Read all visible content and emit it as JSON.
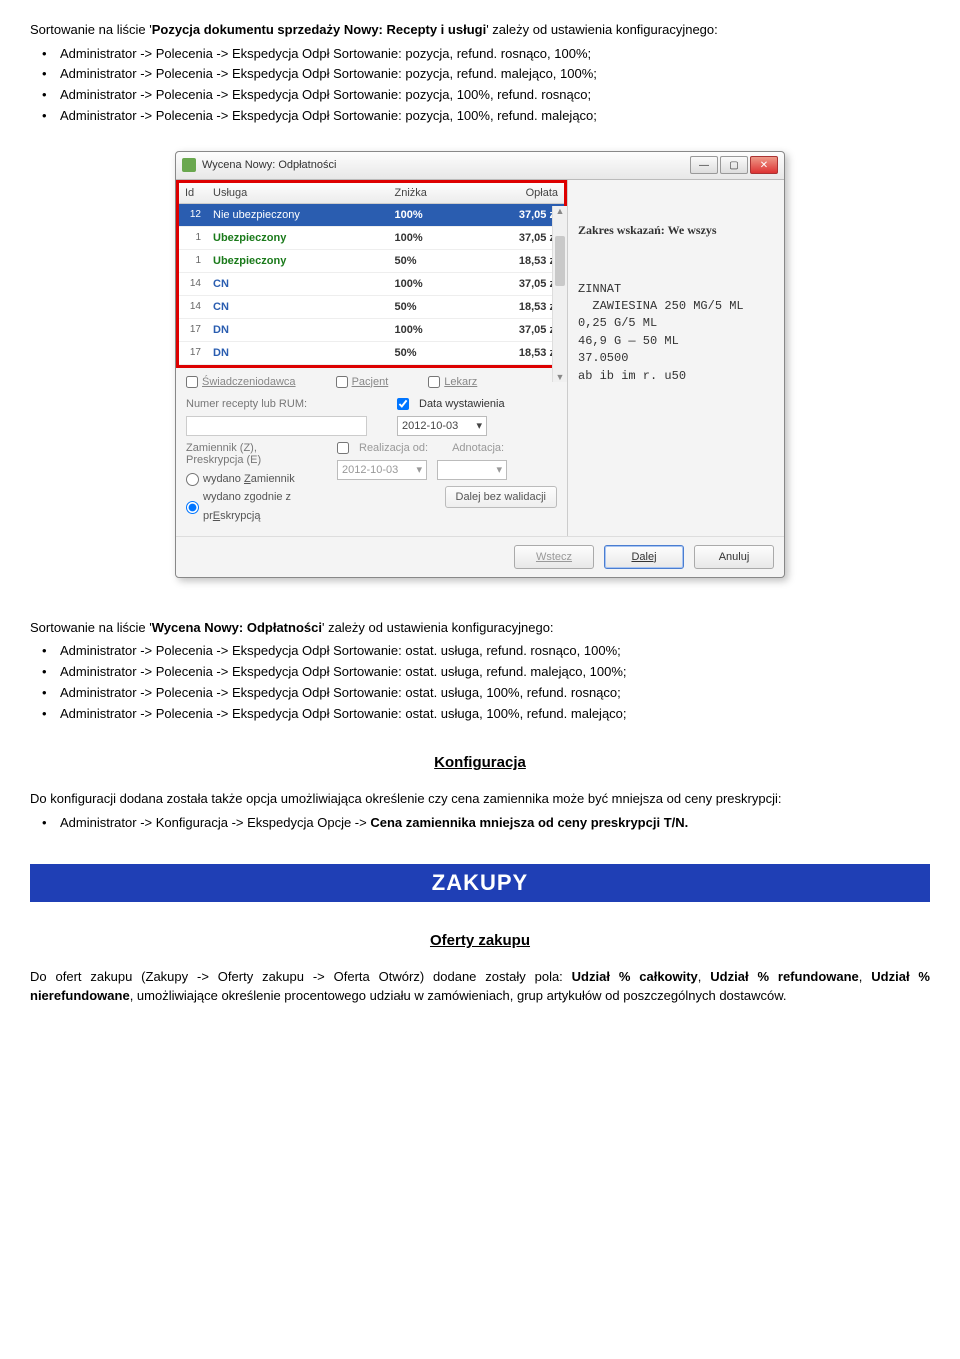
{
  "intro1": {
    "lead": "Sortowanie na liście '",
    "bold": "Pozycja dokumentu sprzedaży Nowy: Recepty i usługi",
    "tail": "' zależy od ustawienia konfiguracyjnego:",
    "items": [
      "Administrator -> Polecenia -> Ekspedycja Odpł Sortowanie: pozycja, refund. rosnąco, 100%;",
      "Administrator -> Polecenia -> Ekspedycja Odpł Sortowanie: pozycja, refund. malejąco, 100%;",
      "Administrator -> Polecenia -> Ekspedycja Odpł Sortowanie: pozycja, 100%, refund. rosnąco;",
      "Administrator -> Polecenia -> Ekspedycja Odpł Sortowanie: pozycja, 100%, refund. malejąco;"
    ]
  },
  "window": {
    "title": "Wycena Nowy: Odpłatności",
    "headers": {
      "id": "Id",
      "usluga": "Usługa",
      "znizka": "Zniżka",
      "oplata": "Opłata"
    },
    "rows": [
      {
        "id": "12",
        "usluga": "Nie ubezpieczony",
        "znizka": "100%",
        "oplata": "37,05 zł",
        "selected": true
      },
      {
        "id": "1",
        "usluga": "Ubezpieczony",
        "znizka": "100%",
        "oplata": "37,05 zł",
        "green": true
      },
      {
        "id": "1",
        "usluga": "Ubezpieczony",
        "znizka": "50%",
        "oplata": "18,53 zł",
        "green": true
      },
      {
        "id": "14",
        "usluga": "CN",
        "znizka": "100%",
        "oplata": "37,05 zł",
        "blue": true
      },
      {
        "id": "14",
        "usluga": "CN",
        "znizka": "50%",
        "oplata": "18,53 zł",
        "blue": true
      },
      {
        "id": "17",
        "usluga": "DN",
        "znizka": "100%",
        "oplata": "37,05 zł",
        "blue": true
      },
      {
        "id": "17",
        "usluga": "DN",
        "znizka": "50%",
        "oplata": "18,53 zł",
        "blue": true
      }
    ],
    "right": {
      "header": "Zakres wskazań: We wszys",
      "lines": "ZINNAT\n  ZAWIESINA 250 MG/5 ML\n0,25 G/5 ML\n46,9 G — 50 ML\n37.0500\nab ib im r. u50"
    },
    "checks": {
      "c1": "Świadczeniodawca",
      "c2": "Pacjent",
      "c3": "Lekarz"
    },
    "numer_label": "Numer recepty lub RUM:",
    "data_wyst_label": "Data wystawienia",
    "data_wyst": "2012-10-03",
    "zamiennik_label": "Zamiennik (Z), Preskrypcja (E)",
    "realiz_label": "Realizacja od:",
    "adnot_label": "Adnotacja:",
    "realiz": "2012-10-03",
    "radio1": "wydano Zamiennik",
    "radio2": "wydano zgodnie z prEskrypcją",
    "btn_dalej_bez": "Dalej bez walidacji",
    "btn_wstecz": "Wstecz",
    "btn_dalej": "Dalej",
    "btn_anuluj": "Anuluj"
  },
  "intro2": {
    "lead": "Sortowanie na liście '",
    "bold": "Wycena Nowy: Odpłatności",
    "tail": "' zależy od ustawienia konfiguracyjnego:",
    "items": [
      "Administrator -> Polecenia -> Ekspedycja Odpł Sortowanie: ostat. usługa, refund. rosnąco, 100%;",
      "Administrator -> Polecenia -> Ekspedycja Odpł Sortowanie: ostat. usługa, refund. malejąco, 100%;",
      "Administrator -> Polecenia -> Ekspedycja Odpł Sortowanie: ostat. usługa, 100%, refund. rosnąco;",
      "Administrator -> Polecenia -> Ekspedycja Odpł Sortowanie: ostat. usługa, 100%, refund. malejąco;"
    ]
  },
  "konfiguracja": {
    "heading": "Konfiguracja",
    "text": "Do konfiguracji dodana została także opcja umożliwiająca określenie czy cena zamiennika może być mniejsza od ceny preskrypcji:",
    "bullet_pre": "Administrator -> Konfiguracja -> Ekspedycja Opcje -> ",
    "bullet_bold": "Cena zamiennika mniejsza od ceny preskrypcji T/N."
  },
  "zakupy": {
    "bar": "ZAKUPY",
    "heading": "Oferty zakupu",
    "p_pre": "Do ofert zakupu (Zakupy -> Oferty zakupu -> Oferta Otwórz) dodane zostały pola: ",
    "b1": "Udział % całkowity",
    "sep": ", ",
    "b2": "Udział % refundowane",
    "b3": "Udział % nierefundowane",
    "p_post": ", umożliwiające określenie procentowego udziału w zamówieniach, grup artykułów od poszczególnych dostawców."
  }
}
